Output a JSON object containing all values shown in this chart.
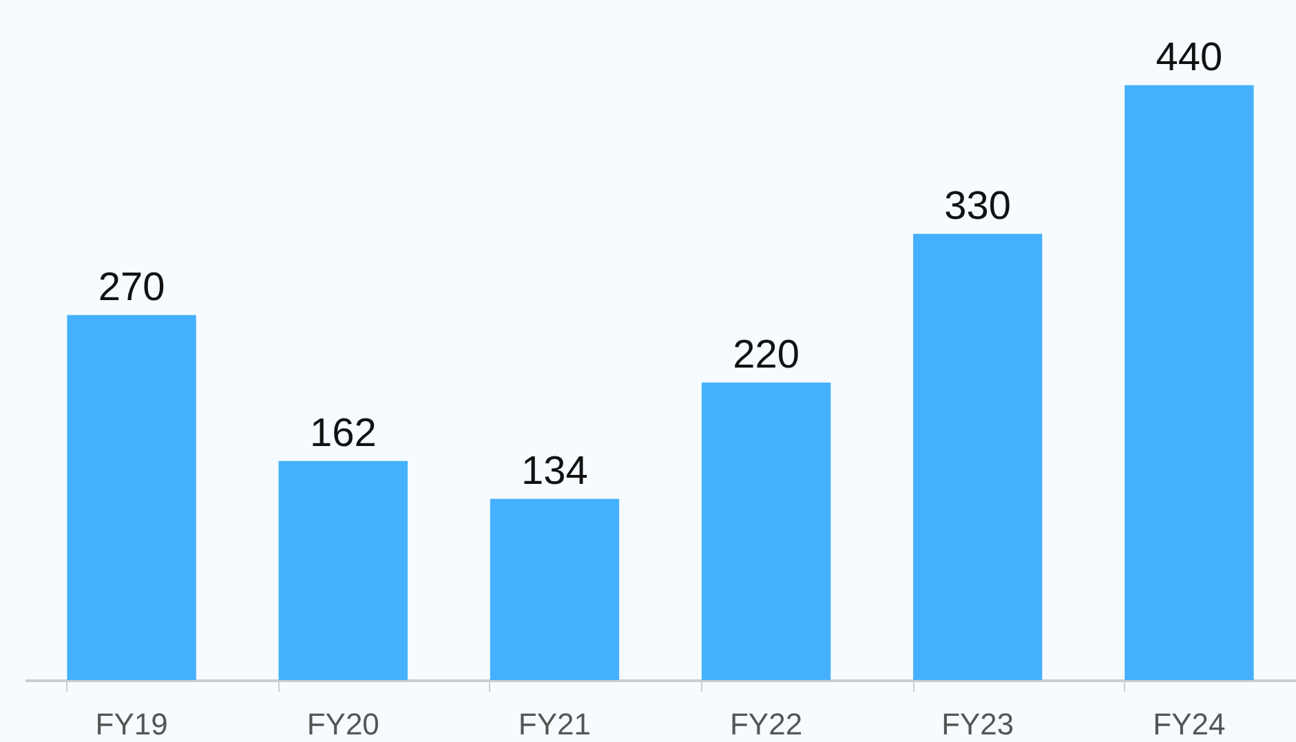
{
  "chart_data": {
    "type": "bar",
    "categories": [
      "FY19",
      "FY20",
      "FY21",
      "FY22",
      "FY23",
      "FY24"
    ],
    "values": [
      270,
      162,
      134,
      220,
      330,
      440
    ],
    "color": "#45b0fd",
    "data_labels": true,
    "grid": false,
    "tick_labels": "x"
  }
}
